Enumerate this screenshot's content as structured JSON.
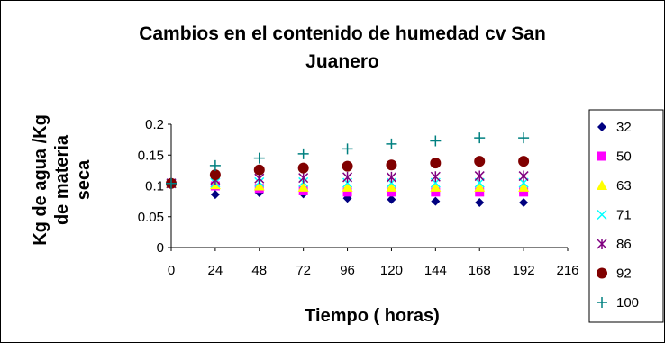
{
  "chart_data": {
    "type": "scatter",
    "title_line1": "Cambios en el contenido de humedad cv San",
    "title_line2": "Juanero",
    "xlabel": "Tiempo ( horas)",
    "ylabel_line1": "Kg de agua /Kg",
    "ylabel_line2": "de materia",
    "ylabel_line3": "seca",
    "xlim": [
      0,
      216
    ],
    "ylim": [
      0,
      0.2
    ],
    "xticks": [
      0,
      24,
      48,
      72,
      96,
      120,
      144,
      168,
      192,
      216
    ],
    "yticks": [
      0,
      0.05,
      0.1,
      0.15,
      0.2
    ],
    "ytick_labels": [
      "0",
      "0.05",
      "0.1",
      "0.15",
      "0.2"
    ],
    "grid": false,
    "legend_position": "right",
    "series": [
      {
        "name": "32",
        "marker": "diamond",
        "color": "#000080",
        "x": [
          0,
          24,
          48,
          72,
          96,
          120,
          144,
          168,
          192
        ],
        "y": [
          0.104,
          0.086,
          0.089,
          0.087,
          0.08,
          0.078,
          0.075,
          0.073,
          0.073
        ]
      },
      {
        "name": "50",
        "marker": "square",
        "color": "#ff00ff",
        "x": [
          0,
          24,
          48,
          72,
          96,
          120,
          144,
          168,
          192
        ],
        "y": [
          0.104,
          0.1,
          0.096,
          0.092,
          0.09,
          0.09,
          0.09,
          0.09,
          0.09
        ]
      },
      {
        "name": "63",
        "marker": "triangle",
        "color": "#ffff00",
        "x": [
          0,
          24,
          48,
          72,
          96,
          120,
          144,
          168,
          192
        ],
        "y": [
          0.104,
          0.102,
          0.1,
          0.098,
          0.098,
          0.098,
          0.098,
          0.098,
          0.098
        ]
      },
      {
        "name": "71",
        "marker": "x",
        "color": "#00ffff",
        "x": [
          0,
          24,
          48,
          72,
          96,
          120,
          144,
          168,
          192
        ],
        "y": [
          0.104,
          0.105,
          0.106,
          0.106,
          0.105,
          0.105,
          0.105,
          0.105,
          0.105
        ]
      },
      {
        "name": "86",
        "marker": "star",
        "color": "#800080",
        "x": [
          0,
          24,
          48,
          72,
          96,
          120,
          144,
          168,
          192
        ],
        "y": [
          0.104,
          0.11,
          0.112,
          0.113,
          0.114,
          0.114,
          0.115,
          0.116,
          0.116
        ]
      },
      {
        "name": "92",
        "marker": "circle",
        "color": "#800000",
        "x": [
          0,
          24,
          48,
          72,
          96,
          120,
          144,
          168,
          192
        ],
        "y": [
          0.104,
          0.118,
          0.126,
          0.129,
          0.132,
          0.134,
          0.137,
          0.14,
          0.14
        ]
      },
      {
        "name": "100",
        "marker": "plus",
        "color": "#008080",
        "x": [
          0,
          24,
          48,
          72,
          96,
          120,
          144,
          168,
          192
        ],
        "y": [
          0.104,
          0.133,
          0.145,
          0.152,
          0.16,
          0.168,
          0.173,
          0.178,
          0.178
        ]
      }
    ]
  }
}
